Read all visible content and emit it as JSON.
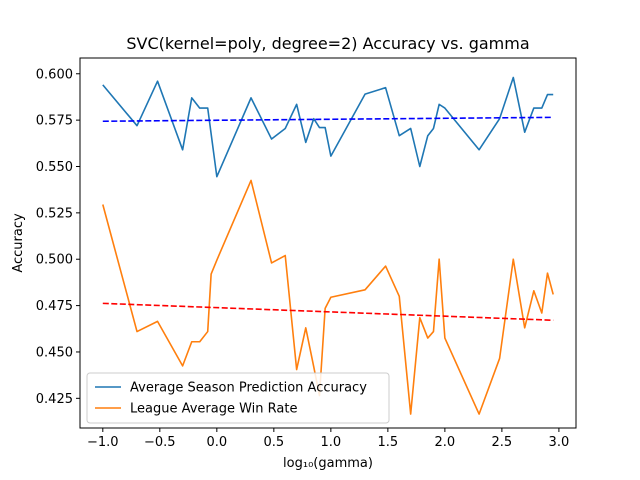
{
  "chart_data": {
    "type": "line",
    "title": "SVC(kernel=poly, degree=2) Accuracy vs. gamma",
    "xlabel": "log₁₀(gamma)",
    "ylabel": "Accuracy",
    "xlim": [
      -1.2,
      3.15
    ],
    "ylim": [
      0.409,
      0.6085
    ],
    "xticks": [
      -1.0,
      -0.5,
      0.0,
      0.5,
      1.0,
      1.5,
      2.0,
      2.5,
      3.0
    ],
    "xtick_labels": [
      "−1.0",
      "−0.5",
      "0.0",
      "0.5",
      "1.0",
      "1.5",
      "2.0",
      "2.5",
      "3.0"
    ],
    "yticks": [
      0.425,
      0.45,
      0.475,
      0.5,
      0.525,
      0.55,
      0.575,
      0.6
    ],
    "ytick_labels": [
      "0.425",
      "0.450",
      "0.475",
      "0.500",
      "0.525",
      "0.550",
      "0.575",
      "0.600"
    ],
    "grid": false,
    "legend_position": "lower-left",
    "series": [
      {
        "name": "Average Season Prediction Accuracy",
        "color": "#1f77b4",
        "style": "solid",
        "x": [
          -1.0,
          -0.7,
          -0.52,
          -0.3,
          -0.22,
          -0.15,
          -0.08,
          0.0,
          0.3,
          0.48,
          0.6,
          0.7,
          0.78,
          0.85,
          0.9,
          0.95,
          1.0,
          1.3,
          1.48,
          1.6,
          1.7,
          1.78,
          1.85,
          1.9,
          1.95,
          2.0,
          2.3,
          2.48,
          2.6,
          2.7,
          2.78,
          2.85,
          2.9,
          2.95
        ],
        "y": [
          0.594,
          0.572,
          0.596,
          0.559,
          0.587,
          0.5815,
          0.5815,
          0.5445,
          0.587,
          0.5648,
          0.5705,
          0.5835,
          0.563,
          0.5758,
          0.571,
          0.571,
          0.5556,
          0.589,
          0.5925,
          0.5666,
          0.5705,
          0.55,
          0.5666,
          0.5705,
          0.5835,
          0.5815,
          0.559,
          0.5758,
          0.598,
          0.5685,
          0.5815,
          0.5815,
          0.5888,
          0.5888
        ]
      },
      {
        "name": "League Average Win Rate",
        "color": "#ff7f0e",
        "style": "solid",
        "x": [
          -1.0,
          -0.7,
          -0.52,
          -0.3,
          -0.22,
          -0.15,
          -0.08,
          -0.05,
          0.0,
          0.3,
          0.48,
          0.6,
          0.7,
          0.78,
          0.85,
          0.9,
          0.95,
          1.0,
          1.3,
          1.48,
          1.6,
          1.7,
          1.78,
          1.85,
          1.9,
          1.95,
          2.0,
          2.3,
          2.48,
          2.6,
          2.7,
          2.78,
          2.85,
          2.9,
          2.95
        ],
        "y": [
          0.5295,
          0.461,
          0.4665,
          0.4425,
          0.4555,
          0.4555,
          0.461,
          0.492,
          0.4995,
          0.5425,
          0.498,
          0.502,
          0.4405,
          0.463,
          0.442,
          0.4265,
          0.4735,
          0.4795,
          0.4835,
          0.4963,
          0.48,
          0.4165,
          0.4685,
          0.4575,
          0.461,
          0.5,
          0.4575,
          0.4165,
          0.4465,
          0.5,
          0.463,
          0.483,
          0.471,
          0.4925,
          0.481
        ]
      },
      {
        "color": "#0000ff",
        "style": "dashed",
        "x": [
          -1.0,
          2.95
        ],
        "y": [
          0.5744,
          0.5765
        ]
      },
      {
        "color": "#ff0000",
        "style": "dashed",
        "x": [
          -1.0,
          2.95
        ],
        "y": [
          0.4762,
          0.4671
        ]
      }
    ]
  }
}
